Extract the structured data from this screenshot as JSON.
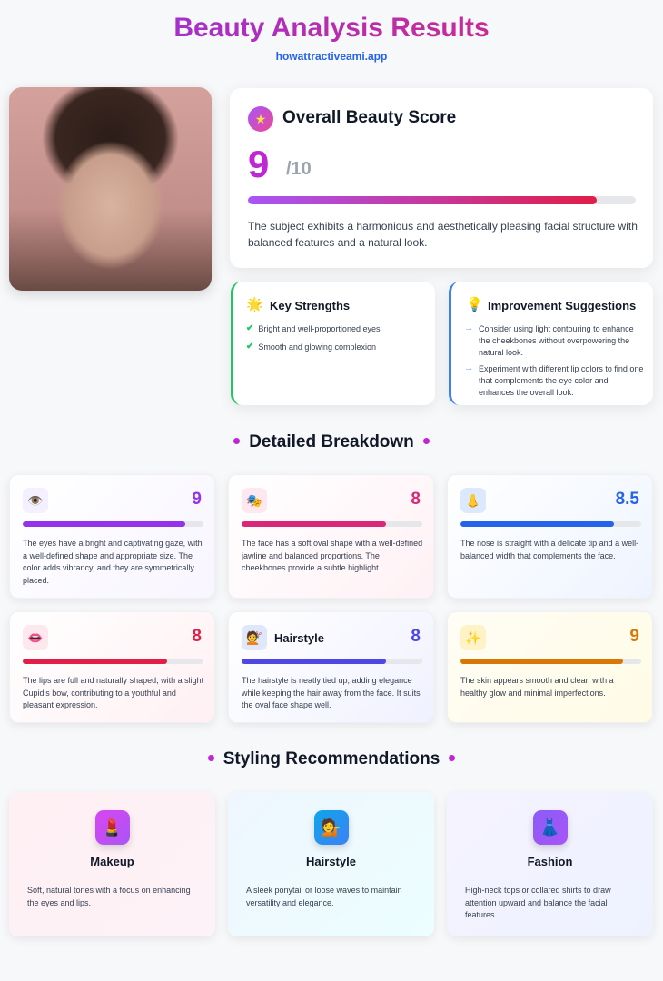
{
  "header": {
    "title": "Beauty Analysis Results",
    "site": "howattractiveami.app"
  },
  "overall": {
    "title": "Overall Beauty Score",
    "score": "9",
    "max": "/10",
    "fraction": 0.9,
    "description": "The subject exhibits a harmonious and aesthetically pleasing facial structure with balanced features and a natural look."
  },
  "strengths": {
    "title": "Key Strengths",
    "items": [
      "Bright and well-proportioned eyes",
      "Smooth and glowing complexion"
    ],
    "accent": "#22c55e"
  },
  "suggestions": {
    "title": "Improvement Suggestions",
    "items": [
      "Consider using light contouring to enhance the cheekbones without overpowering the natural look.",
      "Experiment with different lip colors to find one that complements the eye color and enhances the overall look."
    ],
    "accent": "#3b82f6"
  },
  "breakdown": {
    "title": "Detailed Breakdown",
    "items": [
      {
        "icon": "👁️",
        "label": "",
        "score": "9",
        "value": 9,
        "color": "#9333ea",
        "text": "The eyes have a bright and captivating gaze, with a well-defined shape and appropriate size. The color adds vibrancy, and they are symmetrically placed."
      },
      {
        "icon": "🎭",
        "label": "",
        "score": "8",
        "value": 8,
        "color": "#db2777",
        "text": "The face has a soft oval shape with a well-defined jawline and balanced proportions. The cheekbones provide a subtle highlight."
      },
      {
        "icon": "👃",
        "label": "",
        "score": "8.5",
        "value": 8.5,
        "color": "#2563eb",
        "text": "The nose is straight with a delicate tip and a well-balanced width that complements the face."
      },
      {
        "icon": "👄",
        "label": "",
        "score": "8",
        "value": 8,
        "color": "#e11d48",
        "text": "The lips are full and naturally shaped, with a slight Cupid's bow, contributing to a youthful and pleasant expression."
      },
      {
        "icon": "💇",
        "label": "Hairstyle",
        "score": "8",
        "value": 8,
        "color": "#4f46e5",
        "text": "The hairstyle is neatly tied up, adding elegance while keeping the hair away from the face. It suits the oval face shape well."
      },
      {
        "icon": "✨",
        "label": "",
        "score": "9",
        "value": 9,
        "color": "#d97706",
        "text": "The skin appears smooth and clear, with a healthy glow and minimal imperfections."
      }
    ]
  },
  "styling": {
    "title": "Styling Recommendations",
    "items": [
      {
        "icon": "💄",
        "title": "Makeup",
        "text": "Soft, natural tones with a focus on enhancing the eyes and lips."
      },
      {
        "icon": "💁",
        "title": "Hairstyle",
        "text": "A sleek ponytail or loose waves to maintain versatility and elegance."
      },
      {
        "icon": "👗",
        "title": "Fashion",
        "text": "High-neck tops or collared shirts to draw attention upward and balance the facial features."
      }
    ]
  }
}
